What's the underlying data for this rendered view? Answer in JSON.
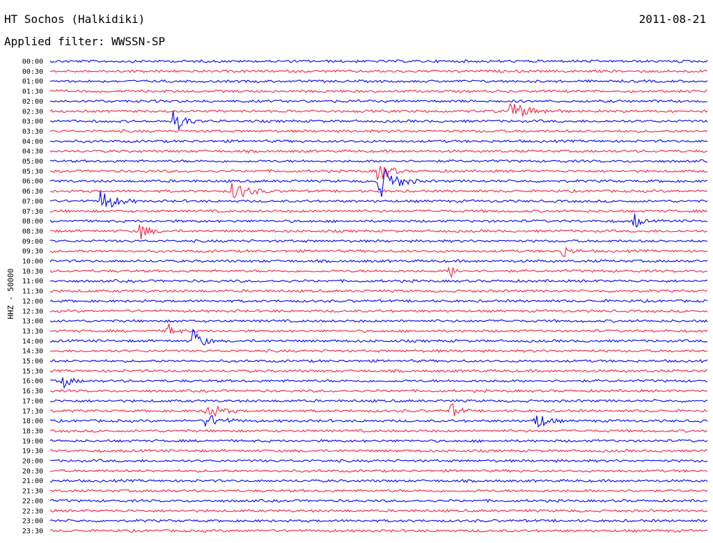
{
  "header": {
    "station": "HT Sochos (Halkidiki)",
    "date": "2011-08-21",
    "filter": "Applied filter: WWSSN-SP"
  },
  "chart_data": {
    "type": "line",
    "title": "HT Sochos (Halkidiki)",
    "ylabel": "HHZ - 50000",
    "xlabel": "",
    "colors": [
      "#0000ee",
      "#ee2244"
    ],
    "rows": [
      "00:00",
      "00:30",
      "01:00",
      "01:30",
      "02:00",
      "02:30",
      "03:00",
      "03:30",
      "04:00",
      "04:30",
      "05:00",
      "05:30",
      "06:00",
      "06:30",
      "07:00",
      "07:30",
      "08:00",
      "08:30",
      "09:00",
      "09:30",
      "10:00",
      "10:30",
      "11:00",
      "11:30",
      "12:00",
      "12:30",
      "13:00",
      "13:30",
      "14:00",
      "14:30",
      "15:00",
      "15:30",
      "16:00",
      "16:30",
      "17:00",
      "17:30",
      "18:00",
      "18:30",
      "19:00",
      "19:30",
      "20:00",
      "20:30",
      "21:00",
      "21:30",
      "22:00",
      "22:30",
      "23:00",
      "23:30"
    ],
    "grid": false,
    "legend": "none",
    "events": [
      {
        "row": 6,
        "pos": 0.19,
        "amp": 1.2,
        "dur": 0.04
      },
      {
        "row": 5,
        "pos": 0.7,
        "amp": 1.0,
        "dur": 0.08
      },
      {
        "row": 13,
        "pos": 0.28,
        "amp": 1.0,
        "dur": 0.06
      },
      {
        "row": 14,
        "pos": 0.08,
        "amp": 1.3,
        "dur": 0.05
      },
      {
        "row": 12,
        "pos": 0.5,
        "amp": 2.2,
        "dur": 0.06
      },
      {
        "row": 11,
        "pos": 0.5,
        "amp": 1.4,
        "dur": 0.04
      },
      {
        "row": 17,
        "pos": 0.14,
        "amp": 1.0,
        "dur": 0.03
      },
      {
        "row": 16,
        "pos": 0.89,
        "amp": 1.0,
        "dur": 0.02
      },
      {
        "row": 28,
        "pos": 0.22,
        "amp": 1.5,
        "dur": 0.03
      },
      {
        "row": 27,
        "pos": 0.18,
        "amp": 0.8,
        "dur": 0.03
      },
      {
        "row": 35,
        "pos": 0.24,
        "amp": 0.9,
        "dur": 0.05
      },
      {
        "row": 35,
        "pos": 0.61,
        "amp": 0.9,
        "dur": 0.03
      },
      {
        "row": 36,
        "pos": 0.74,
        "amp": 1.0,
        "dur": 0.04
      },
      {
        "row": 32,
        "pos": 0.02,
        "amp": 0.8,
        "dur": 0.03
      },
      {
        "row": 19,
        "pos": 0.78,
        "amp": 0.7,
        "dur": 0.03
      },
      {
        "row": 21,
        "pos": 0.61,
        "amp": 0.7,
        "dur": 0.02
      },
      {
        "row": 36,
        "pos": 0.24,
        "amp": 0.7,
        "dur": 0.06
      }
    ]
  }
}
